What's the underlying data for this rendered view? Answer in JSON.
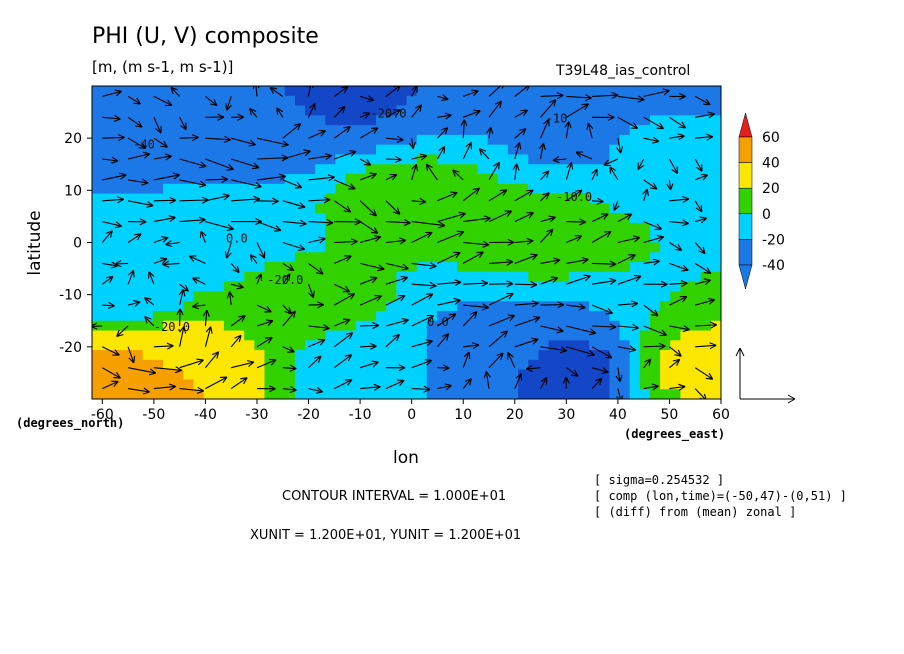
{
  "header": {
    "title": "PHI (U, V) composite",
    "units": "[m, (m s-1, m s-1)]",
    "run": "T39L48_ias_control"
  },
  "footer": {
    "contour_interval": "CONTOUR INTERVAL = 1.000E+01",
    "vector_units": "XUNIT = 1.200E+01, YUNIT = 1.200E+01"
  },
  "info": {
    "line1": "[ sigma=0.254532 ]",
    "line2": "[ comp (lon,time)=(-50,47)-(0,51) ]",
    "line3": "[ (diff) from (mean) zonal ]"
  },
  "chart_data": {
    "type": "heatmap",
    "title": "PHI (U, V) composite",
    "xlabel": "lon",
    "ylabel": "latitude",
    "x_units": "(degrees_east)",
    "y_units": "(degrees_north)",
    "xlim": [
      -62,
      60
    ],
    "ylim": [
      -30,
      30
    ],
    "x_ticks": [
      -60,
      -50,
      -40,
      -30,
      -20,
      -10,
      0,
      10,
      20,
      30,
      40,
      50,
      60
    ],
    "y_ticks": [
      -20,
      -10,
      0,
      10,
      20
    ],
    "contour_interval": 10,
    "colorbar": {
      "levels": [
        -40,
        -20,
        0,
        20,
        40,
        60
      ],
      "colors": [
        "#1c78e6",
        "#00d2ff",
        "#32d200",
        "#fae600",
        "#f5a000",
        "#e61e1e"
      ],
      "end_top_color": "#e61e1e",
      "end_bottom_color": "#1c78e6",
      "level_colors": [
        "#1446c8",
        "#1c78e6",
        "#00d2ff",
        "#32d200",
        "#fae600",
        "#f5a000",
        "#e61e1e"
      ],
      "level_min": -40
    },
    "field_regions": [
      {
        "lon": -15,
        "lat": 28,
        "value": -42
      },
      {
        "lon": -30,
        "lat": 23,
        "value": -35
      },
      {
        "lon": 35,
        "lat": 23,
        "value": -30
      },
      {
        "lon": -55,
        "lat": 18,
        "value": -22
      },
      {
        "lon": 45,
        "lat": 20,
        "value": -18
      },
      {
        "lon": -45,
        "lat": 2,
        "value": -18
      },
      {
        "lon": -55,
        "lat": -10,
        "value": -5
      },
      {
        "lon": 0,
        "lat": 8,
        "value": 7
      },
      {
        "lon": 25,
        "lat": 2,
        "value": 5
      },
      {
        "lon": -20,
        "lat": -12,
        "value": 6
      },
      {
        "lon": 15,
        "lat": -22,
        "value": -35
      },
      {
        "lon": 30,
        "lat": -25,
        "value": -45
      },
      {
        "lon": -5,
        "lat": -23,
        "value": -15
      },
      {
        "lon": -52,
        "lat": -25,
        "value": 48
      },
      {
        "lon": -45,
        "lat": -21,
        "value": 28
      },
      {
        "lon": 57,
        "lat": -24,
        "value": 25
      }
    ],
    "contour_labels": [
      {
        "text": "-20.0",
        "lon": -8,
        "lat": 24
      },
      {
        "text": "-40",
        "lon": -54,
        "lat": 18
      },
      {
        "text": "-10",
        "lon": 26,
        "lat": 23
      },
      {
        "text": "0.0",
        "lon": -36,
        "lat": 0
      },
      {
        "text": "-20.0",
        "lon": -50,
        "lat": -17
      },
      {
        "text": "0.0",
        "lon": 3,
        "lat": -16
      },
      {
        "text": "-10.0",
        "lon": 28,
        "lat": 8
      },
      {
        "text": "-20.0",
        "lon": -28,
        "lat": -8
      }
    ],
    "vector_reference": {
      "u": 12,
      "v": 12
    }
  }
}
